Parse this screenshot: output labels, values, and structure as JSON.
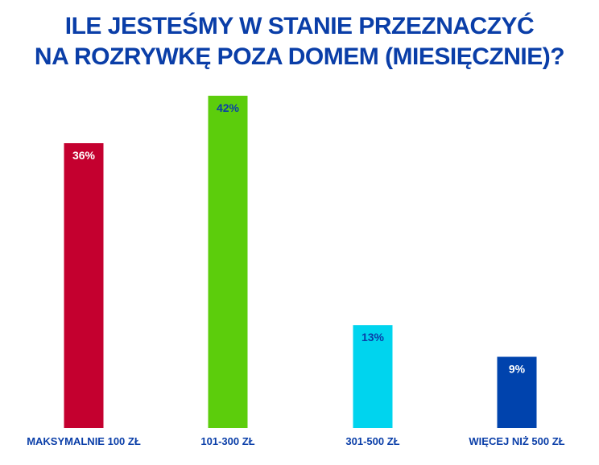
{
  "chart_data": {
    "type": "bar",
    "title_lines": [
      "ILE JESTEŚMY W STANIE PRZEZNACZYĆ",
      "NA ROZRYWKĘ POZA DOMEM (MIESIĘCZNIE)?"
    ],
    "categories": [
      "MAKSYMALNIE 100 ZŁ",
      "101-300 ZŁ",
      "301-500 ZŁ",
      "WIĘCEJ NIŻ 500 ZŁ"
    ],
    "values": [
      36,
      42,
      13,
      9
    ],
    "value_labels": [
      "36%",
      "42%",
      "13%",
      "9%"
    ],
    "unit": "%",
    "bar_colors": [
      "#c4002f",
      "#5ccd0c",
      "#00d4ee",
      "#0043ad"
    ],
    "value_label_colors": [
      "#ffffff",
      "#0a3ea8",
      "#0a3ea8",
      "#ffffff"
    ],
    "ylim": [
      0,
      42
    ],
    "grid": false,
    "legend": "none"
  }
}
